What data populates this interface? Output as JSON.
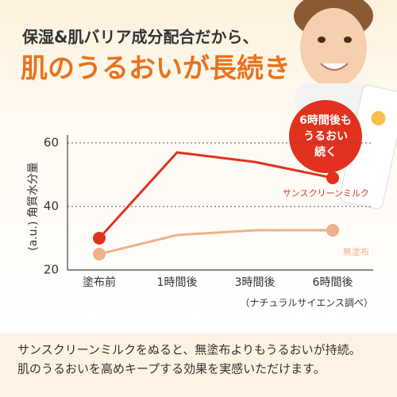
{
  "header": {
    "line1": "保湿&肌バリア成分配合だから、",
    "line2": "肌のうるおいが長続き"
  },
  "callout": [
    "6時間後も",
    "うるおい",
    "続く"
  ],
  "chart_data": {
    "type": "line",
    "y_label": "(a.u.) 角質水分量",
    "categories": [
      "塗布前",
      "1時間後",
      "3時間後",
      "6時間後"
    ],
    "series": [
      {
        "name": "サンスクリーンミルク",
        "color": "#e0321e",
        "values": [
          30,
          57,
          54,
          49
        ]
      },
      {
        "name": "無塗布",
        "color": "#f0b08a",
        "values": [
          25,
          31,
          32.5,
          32.5
        ]
      }
    ],
    "ylim": [
      20,
      60
    ],
    "yticks": [
      20,
      40,
      60
    ],
    "grid": true,
    "note": "（ナチュラルサイエンス調べ）"
  },
  "footer": [
    "サンスクリーンミルクをぬると、無塗布よりもうるおいが持続。",
    "肌のうるおいを高めキープする効果を実感いただけます。"
  ]
}
